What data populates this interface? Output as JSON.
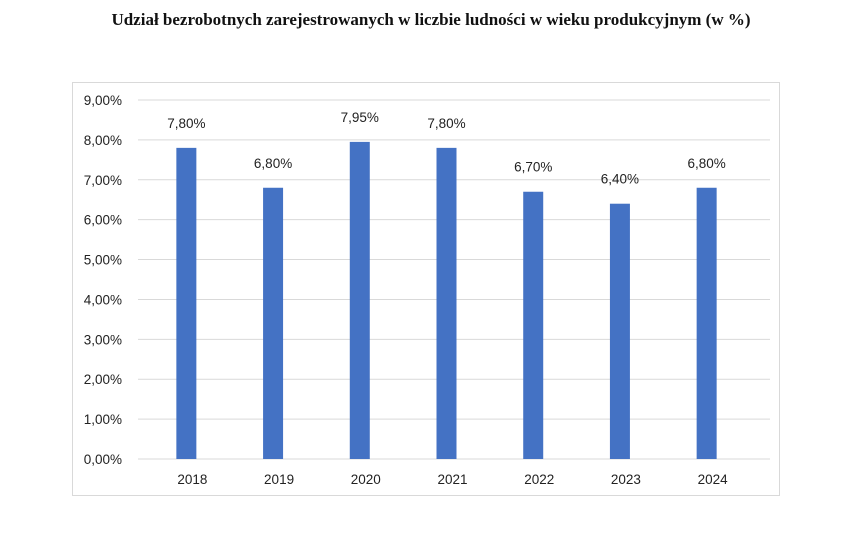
{
  "chart_data": {
    "type": "bar",
    "title": "Udział bezrobotnych zarejestrowanych w liczbie ludności w wieku produkcyjnym (w %)",
    "categories": [
      "2018",
      "2019",
      "2020",
      "2021",
      "2022",
      "2023",
      "2024"
    ],
    "values": [
      7.8,
      6.8,
      7.95,
      7.8,
      6.7,
      6.4,
      6.8
    ],
    "data_labels": [
      "7,80%",
      "6,80%",
      "7,95%",
      "7,80%",
      "6,70%",
      "6,40%",
      "6,80%"
    ],
    "ylim": [
      0,
      9
    ],
    "yticks": [
      "0,00%",
      "1,00%",
      "2,00%",
      "3,00%",
      "4,00%",
      "5,00%",
      "6,00%",
      "7,00%",
      "8,00%",
      "9,00%"
    ],
    "xlabel": "",
    "ylabel": "",
    "grid": true,
    "legend": "none",
    "bar_color": "#4472c4"
  }
}
